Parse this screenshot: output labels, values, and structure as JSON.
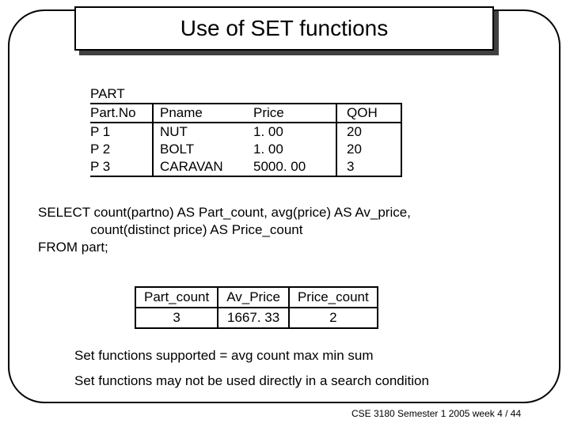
{
  "title": "Use of SET functions",
  "part": {
    "caption": "PART",
    "headers": {
      "c1": "Part.No",
      "c2": "Pname",
      "c3": "Price",
      "c4": "QOH"
    },
    "rows": [
      {
        "c1": "P 1",
        "c2": "NUT",
        "c3": "1. 00",
        "c4": "20"
      },
      {
        "c1": "P 2",
        "c2": "BOLT",
        "c3": "1. 00",
        "c4": "20"
      },
      {
        "c1": "P 3",
        "c2": "CARAVAN",
        "c3": "5000. 00",
        "c4": "3"
      }
    ]
  },
  "sql": {
    "l1": "SELECT count(partno) AS Part_count, avg(price) AS Av_price,",
    "l2": "              count(distinct price) AS Price_count",
    "l3": "FROM part;"
  },
  "result": {
    "headers": {
      "c1": "Part_count",
      "c2": "Av_Price",
      "c3": "Price_count"
    },
    "row": {
      "c1": "3",
      "c2": "1667. 33",
      "c3": "2"
    }
  },
  "notes": {
    "n1": "Set functions supported  = avg  count  max  min  sum",
    "n2": "Set functions may not be used directly in a search condition"
  },
  "footer": "CSE 3180 Semester 1 2005  week 4 / 44",
  "style": {
    "bg": "#ffffff",
    "border": "#000000",
    "shadow": "#404040",
    "title_fontsize": 28,
    "body_fontsize": 17,
    "footer_fontsize": 12
  }
}
